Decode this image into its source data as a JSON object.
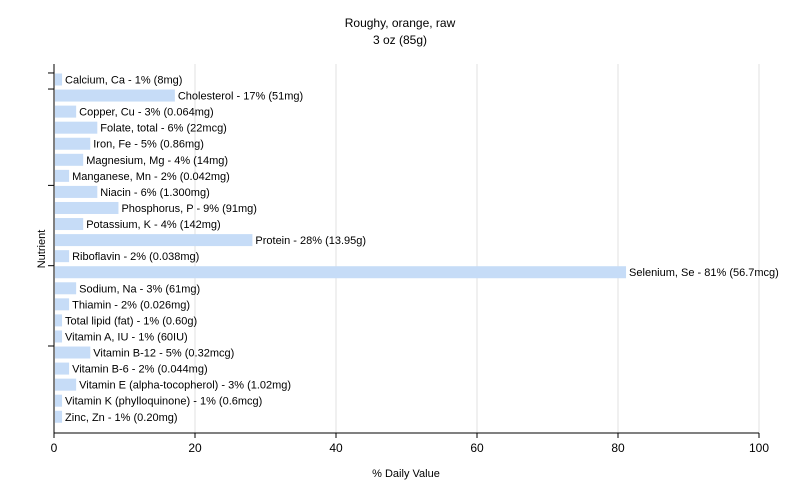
{
  "chart_data": {
    "type": "bar",
    "orientation": "horizontal",
    "title": "Roughy, orange, raw",
    "subtitle": "3 oz (85g)",
    "xlabel": "% Daily Value",
    "ylabel": "Nutrient",
    "xlim": [
      0,
      100
    ],
    "xticks": [
      0,
      20,
      40,
      60,
      80,
      100
    ],
    "grid": true,
    "bar_color": "#c6dcf7",
    "categories": [
      "Calcium, Ca - 1% (8mg)",
      "Cholesterol - 17% (51mg)",
      "Copper, Cu - 3% (0.064mg)",
      "Folate, total - 6% (22mcg)",
      "Iron, Fe - 5% (0.86mg)",
      "Magnesium, Mg - 4% (14mg)",
      "Manganese, Mn - 2% (0.042mg)",
      "Niacin - 6% (1.300mg)",
      "Phosphorus, P - 9% (91mg)",
      "Potassium, K - 4% (142mg)",
      "Protein - 28% (13.95g)",
      "Riboflavin - 2% (0.038mg)",
      "Selenium, Se - 81% (56.7mcg)",
      "Sodium, Na - 3% (61mg)",
      "Thiamin - 2% (0.026mg)",
      "Total lipid (fat) - 1% (0.60g)",
      "Vitamin A, IU - 1% (60IU)",
      "Vitamin B-12 - 5% (0.32mcg)",
      "Vitamin B-6 - 2% (0.044mg)",
      "Vitamin E (alpha-tocopherol) - 3% (1.02mg)",
      "Vitamin K (phylloquinone) - 1% (0.6mcg)",
      "Zinc, Zn - 1% (0.20mg)"
    ],
    "values": [
      1,
      17,
      3,
      6,
      5,
      4,
      2,
      6,
      9,
      4,
      28,
      2,
      81,
      3,
      2,
      1,
      1,
      5,
      2,
      3,
      1,
      1
    ]
  }
}
